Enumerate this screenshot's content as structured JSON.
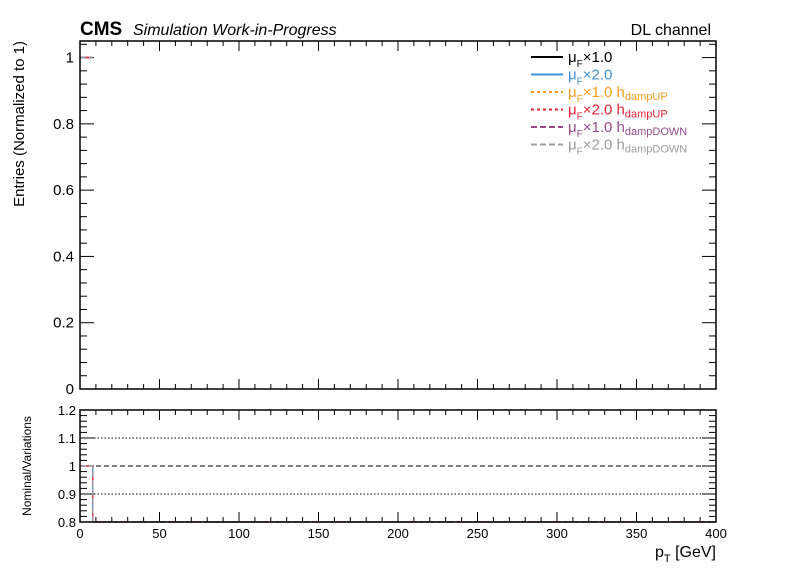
{
  "header": {
    "experiment": "CMS",
    "status": "Simulation Work-in-Progress",
    "channel": "DL channel"
  },
  "chart_data": [
    {
      "type": "line",
      "panel": "main",
      "xlabel_main": "p",
      "xlabel_sub": "T",
      "xlabel_unit": " [GeV]",
      "ylabel": "Entries (Normalized to 1)",
      "xlim": [
        0,
        400
      ],
      "ylim": [
        0,
        1.05
      ],
      "xticks": [
        0,
        50,
        100,
        150,
        200,
        250,
        300,
        350,
        400
      ],
      "yticks": [
        0,
        0.2,
        0.4,
        0.6,
        0.8,
        1
      ],
      "ytick_labels": [
        "0",
        "0.2",
        "0.4",
        "0.6",
        "0.8",
        "1"
      ],
      "grid": false,
      "legend_position": "top-right",
      "series": [
        {
          "name": "μF×1.0",
          "label_main": "μ",
          "label_sub": "F",
          "label_rest": "×1.0",
          "label_sub2": "",
          "color": "#000000",
          "dash": "solid",
          "x": [
            0,
            8
          ],
          "y": [
            1,
            1
          ]
        },
        {
          "name": "μF×2.0",
          "label_main": "μ",
          "label_sub": "F",
          "label_rest": "×2.0",
          "label_sub2": "",
          "color": "#3f90da",
          "dash": "solid",
          "x": [
            0,
            8
          ],
          "y": [
            1,
            1
          ]
        },
        {
          "name": "μF×1.0 hdampUP",
          "label_main": "μ",
          "label_sub": "F",
          "label_rest": "×1.0 h",
          "label_sub2": "dampUP",
          "color": "#f89c20",
          "dash": "dotted",
          "x": [
            0,
            8
          ],
          "y": [
            1,
            1
          ]
        },
        {
          "name": "μF×2.0 hdampUP",
          "label_main": "μ",
          "label_sub": "F",
          "label_rest": "×2.0 h",
          "label_sub2": "dampUP",
          "color": "#e42536",
          "dash": "dotted",
          "x": [
            0,
            8
          ],
          "y": [
            1,
            1
          ]
        },
        {
          "name": "μF×1.0 hdampDOWN",
          "label_main": "μ",
          "label_sub": "F",
          "label_rest": "×1.0 h",
          "label_sub2": "dampDOWN",
          "color": "#964a8b",
          "dash": "dashed",
          "x": [
            0,
            8
          ],
          "y": [
            1,
            1
          ]
        },
        {
          "name": "μF×2.0 hdampDOWN",
          "label_main": "μ",
          "label_sub": "F",
          "label_rest": "×2.0 h",
          "label_sub2": "dampDOWN",
          "color": "#9c9ca1",
          "dash": "dashed",
          "x": [
            0,
            8
          ],
          "y": [
            1,
            1
          ]
        }
      ]
    },
    {
      "type": "line",
      "panel": "ratio",
      "ylabel": "Nominal/Variations",
      "xlim": [
        0,
        400
      ],
      "ylim": [
        0.8,
        1.2
      ],
      "xticks": [
        0,
        50,
        100,
        150,
        200,
        250,
        300,
        350,
        400
      ],
      "xtick_labels": [
        "0",
        "50",
        "100",
        "150",
        "200",
        "250",
        "300",
        "350",
        "400"
      ],
      "yticks": [
        0.8,
        0.9,
        1,
        1.1,
        1.2
      ],
      "ytick_labels": [
        "0.8",
        "0.9",
        "1",
        "1.1",
        "1.2"
      ],
      "reference_lines": [
        0.9,
        1,
        1.1
      ],
      "grid": false,
      "series": [
        {
          "name": "μF×2.0",
          "color": "#3f90da",
          "dash": "solid",
          "x": [
            0,
            8,
            400
          ],
          "y": [
            1,
            0.8,
            0.8
          ]
        },
        {
          "name": "μF×1.0 hdampUP",
          "color": "#f89c20",
          "dash": "dotted",
          "x": [
            0,
            8,
            400
          ],
          "y": [
            1,
            0.8,
            0.8
          ]
        },
        {
          "name": "μF×2.0 hdampUP",
          "color": "#e42536",
          "dash": "dotted",
          "x": [
            0,
            8,
            400
          ],
          "y": [
            1,
            0.8,
            0.8
          ]
        },
        {
          "name": "μF×1.0 hdampDOWN",
          "color": "#964a8b",
          "dash": "dashed",
          "x": [
            0,
            8,
            400
          ],
          "y": [
            1,
            0.8,
            0.8
          ]
        },
        {
          "name": "μF×2.0 hdampDOWN",
          "color": "#9c9ca1",
          "dash": "dashed",
          "x": [
            0,
            8,
            400
          ],
          "y": [
            1,
            0.8,
            0.8
          ]
        }
      ]
    }
  ]
}
